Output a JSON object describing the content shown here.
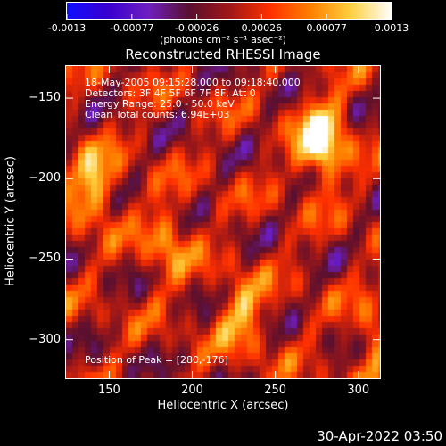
{
  "colorbar": {
    "ticks": [
      "-0.0013",
      "-0.00077",
      "-0.00026",
      "0.00026",
      "0.00077",
      "0.0013"
    ],
    "unit_label": "(photons cm⁻² s⁻¹ asec⁻²)",
    "colors": [
      "#1010ff",
      "#3a00d0",
      "#7020c0",
      "#5a1030",
      "#a01818",
      "#ff3000",
      "#ff8000",
      "#ffd040",
      "#ffffff"
    ]
  },
  "plot": {
    "title": "Reconstructed RHESSI Image",
    "xlabel": "Heliocentric X (arcsec)",
    "ylabel": "Heliocentric Y (arcsec)",
    "info_lines": [
      "18-May-2005 09:15:28.000 to 09:18:40.000",
      "Detectors: 3F 4F 5F 6F 7F 8F, Att 0",
      "Energy Range: 25.0 - 50.0 keV",
      "Clean     Total counts: 6.94E+03"
    ],
    "peak_label": "Position of Peak = [280,-176]"
  },
  "chart_data": {
    "type": "heatmap",
    "title": "Reconstructed RHESSI Image",
    "xlabel": "Heliocentric X (arcsec)",
    "ylabel": "Heliocentric Y (arcsec)",
    "xlim": [
      124,
      313
    ],
    "ylim": [
      -324,
      -130
    ],
    "xticks": [
      150,
      200,
      250,
      300
    ],
    "yticks": [
      -150,
      -200,
      -250,
      -300
    ],
    "color_scale": [
      -0.0013,
      0.0013
    ],
    "peak": {
      "x": 280,
      "y": -176
    },
    "hot_spots": [
      {
        "x": 278,
        "y": -177,
        "value": 0.0013
      },
      {
        "x": 140,
        "y": -205,
        "value": 0.00085
      },
      {
        "x": 230,
        "y": -285,
        "value": 0.0007
      },
      {
        "x": 185,
        "y": -240,
        "value": 0.0006
      },
      {
        "x": 310,
        "y": -300,
        "value": 0.0005
      }
    ]
  },
  "footer": {
    "timestamp": "30-Apr-2022 03:50"
  }
}
